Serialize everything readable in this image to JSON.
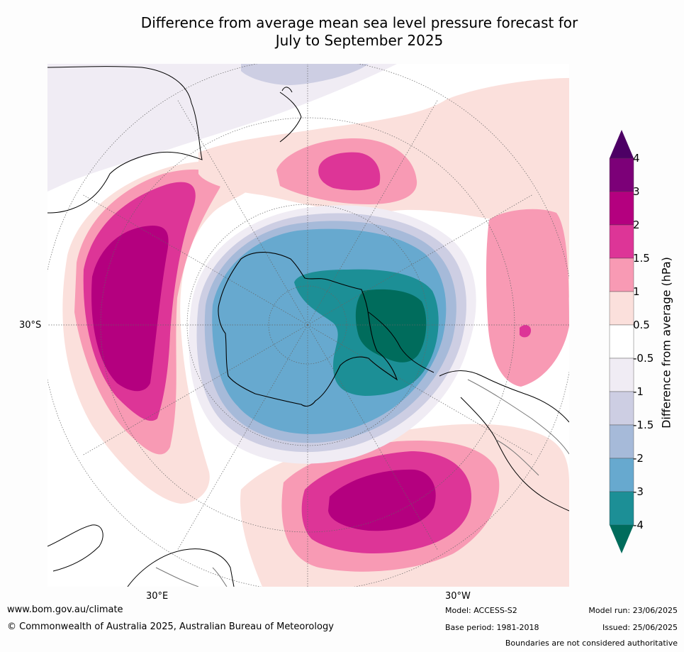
{
  "title": {
    "line1": "Difference from average mean sea level pressure forecast for",
    "line2": "July to September 2025"
  },
  "map": {
    "projection": "south-polar-stereographic",
    "lat_label": "30°S",
    "lon_labels": [
      "30°E",
      "30°W"
    ],
    "colors": {
      "ocean": "#ffffff",
      "coast": "#000000",
      "graticule": "#666666"
    }
  },
  "colorbar": {
    "title": "Difference from average (hPa)",
    "tick_labels": [
      "4",
      "3",
      "2",
      "1.5",
      "1",
      "0.5",
      "-0.5",
      "-1",
      "-1.5",
      "-2",
      "-3",
      "-4"
    ],
    "bins_top_to_bottom": [
      {
        "range": ">4",
        "color": "#4d0065"
      },
      {
        "range": "3 to 4",
        "color": "#7c0078"
      },
      {
        "range": "2 to 3",
        "color": "#b4007f"
      },
      {
        "range": "1.5 to 2",
        "color": "#dd3597"
      },
      {
        "range": "1 to 1.5",
        "color": "#f89ab4"
      },
      {
        "range": "0.5 to 1",
        "color": "#fbe0dc"
      },
      {
        "range": "-0.5 to 0.5",
        "color": "#ffffff"
      },
      {
        "range": "-1 to -0.5",
        "color": "#f0ecf4"
      },
      {
        "range": "-1.5 to -1",
        "color": "#cdcee3"
      },
      {
        "range": "-2 to -1.5",
        "color": "#a6bad9"
      },
      {
        "range": "-3 to -2",
        "color": "#67a9cf"
      },
      {
        "range": "-4 to -3",
        "color": "#1c8f96"
      },
      {
        "range": "<-4",
        "color": "#006c5c"
      }
    ]
  },
  "footer": {
    "url": "www.bom.gov.au/climate",
    "copyright": "© Commonwealth of Australia 2025, Australian Bureau of Meteorology",
    "model": "Model: ACCESS-S2",
    "base_period": "Base period: 1981-2018",
    "model_run": "Model run: 23/06/2025",
    "issued": "Issued: 25/06/2025",
    "disclaimer": "Boundaries are not considered authoritative"
  }
}
